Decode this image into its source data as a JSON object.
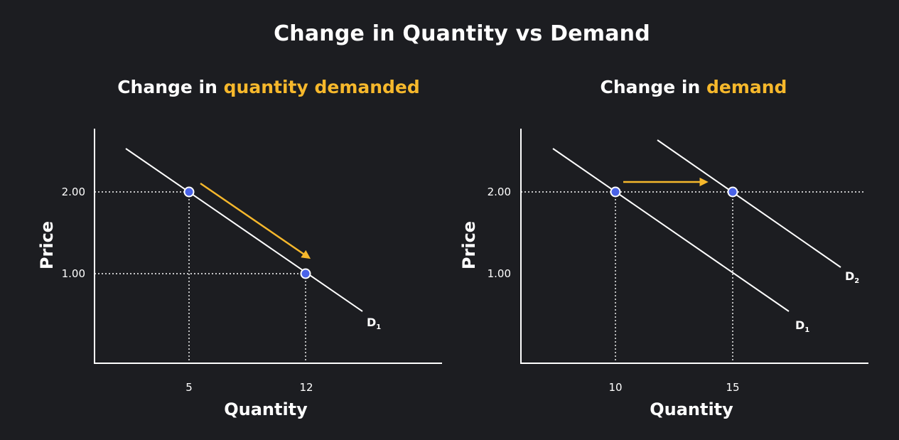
{
  "main_title": "Change in Quantity vs Demand",
  "chart_data": [
    {
      "type": "line",
      "title_prefix": "Change in ",
      "title_highlight": "quantity demanded",
      "xlabel": "Quantity",
      "ylabel": "Price",
      "x_ticks": [
        "5",
        "12"
      ],
      "y_ticks": [
        "2.00",
        "1.00"
      ],
      "series": [
        {
          "name": "D",
          "subscript": "1"
        }
      ],
      "points": [
        {
          "x": 5,
          "y": 2.0
        },
        {
          "x": 12,
          "y": 1.0
        }
      ],
      "annotation": "arrow along D1 from (5, 2.00) to (12, 1.00)",
      "highlight_color": "#f6b82c",
      "point_color": "#4a63e8"
    },
    {
      "type": "line",
      "title_prefix": "Change in ",
      "title_highlight": "demand",
      "xlabel": "Quantity",
      "ylabel": "Price",
      "x_ticks": [
        "10",
        "15"
      ],
      "y_ticks": [
        "2.00",
        "1.00"
      ],
      "series": [
        {
          "name": "D",
          "subscript": "1"
        },
        {
          "name": "D",
          "subscript": "2"
        }
      ],
      "points": [
        {
          "x": 10,
          "y": 2.0
        },
        {
          "x": 15,
          "y": 2.0
        }
      ],
      "annotation": "horizontal arrow from D1 to D2 at price 2.00",
      "highlight_color": "#f6b82c",
      "point_color": "#4a63e8"
    }
  ]
}
